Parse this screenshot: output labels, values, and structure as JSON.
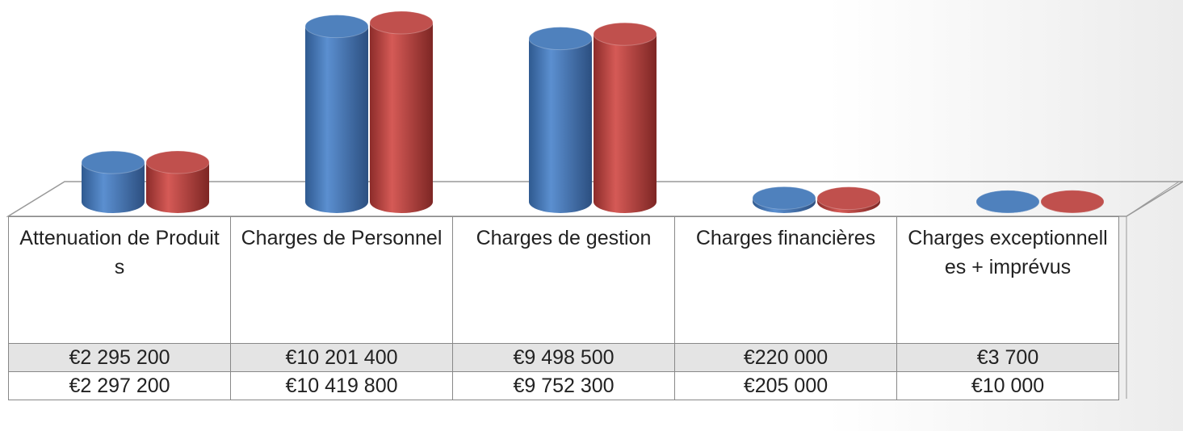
{
  "chart_data": {
    "type": "cylinder",
    "categories": [
      "Attenuation de Produits",
      "Charges de Personnel",
      "Charges de gestion",
      "Charges financières",
      "Charges exceptionnelles + imprévus"
    ],
    "series": [
      {
        "color": "#4f81bd",
        "values": [
          2295200,
          10201400,
          9498500,
          220000,
          3700
        ],
        "value_labels": [
          "€2 295 200",
          "€10 201 400",
          "€9 498 500",
          "€220 000",
          "€3 700"
        ]
      },
      {
        "color": "#c0504d",
        "values": [
          2297200,
          10419800,
          9752300,
          205000,
          10000
        ],
        "value_labels": [
          "€2 297 200",
          "€10 419 800",
          "€9 752 300",
          "€205 000",
          "€10 000"
        ]
      }
    ]
  }
}
